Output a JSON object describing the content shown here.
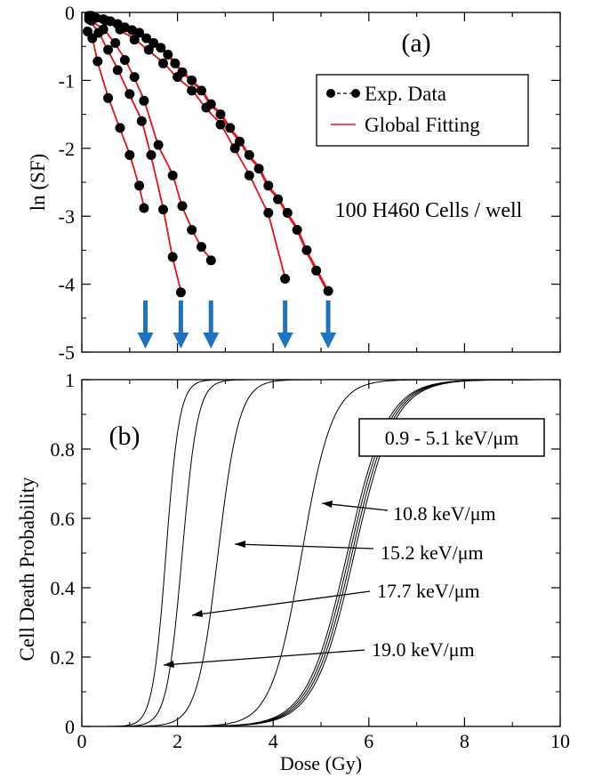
{
  "chart_data": [
    {
      "type": "scatter",
      "panel_label": "(a)",
      "annotation": "100 H460 Cells / well",
      "ylabel": "ln (SF)",
      "xlim": [
        0,
        10
      ],
      "ylim": [
        -5,
        0
      ],
      "y_ticks": [
        "0",
        "-1",
        "-2",
        "-3",
        "-4",
        "-5"
      ],
      "legend": {
        "placement": "top-right",
        "entries": [
          "Exp. Data",
          "Global Fitting"
        ]
      },
      "colors": {
        "data": "#000000",
        "fit": "#e8141c",
        "arrow": "#1f72c0"
      },
      "arrow_doses": [
        1.33,
        2.07,
        2.7,
        4.25,
        5.15
      ],
      "series": [
        {
          "x": [
            0.12,
            0.22,
            0.33,
            0.55,
            0.8,
            1.0,
            1.2,
            1.3
          ],
          "y": [
            -0.28,
            -0.38,
            -0.72,
            -1.26,
            -1.7,
            -2.1,
            -2.55,
            -2.88
          ]
        },
        {
          "x": [
            0.15,
            0.35,
            0.55,
            0.75,
            1.0,
            1.25,
            1.45,
            1.7,
            1.9,
            2.07
          ],
          "y": [
            -0.1,
            -0.3,
            -0.55,
            -0.85,
            -1.2,
            -1.6,
            -2.1,
            -2.9,
            -3.6,
            -4.12
          ]
        },
        {
          "x": [
            0.2,
            0.45,
            0.7,
            0.9,
            1.1,
            1.3,
            1.6,
            1.9,
            2.1,
            2.3,
            2.5,
            2.7
          ],
          "y": [
            -0.12,
            -0.25,
            -0.45,
            -0.7,
            -0.95,
            -1.3,
            -1.95,
            -2.4,
            -2.85,
            -3.2,
            -3.45,
            -3.65
          ]
        },
        {
          "x": [
            0.2,
            0.5,
            0.8,
            1.1,
            1.4,
            1.7,
            2.0,
            2.3,
            2.6,
            2.9,
            3.2,
            3.5,
            3.9,
            4.25
          ],
          "y": [
            -0.05,
            -0.12,
            -0.25,
            -0.4,
            -0.55,
            -0.75,
            -0.95,
            -1.15,
            -1.4,
            -1.65,
            -2.0,
            -2.4,
            -2.95,
            -3.92
          ]
        },
        {
          "x": [
            0.15,
            0.3,
            0.45,
            0.6,
            0.75,
            0.9,
            1.05,
            1.2,
            1.35,
            1.5,
            1.65,
            1.8,
            1.95,
            2.1,
            2.3,
            2.5,
            2.7,
            2.9,
            3.1,
            3.3,
            3.5,
            3.7,
            3.9,
            4.1,
            4.3,
            4.5,
            4.7,
            4.9,
            5.15
          ],
          "y": [
            -0.05,
            -0.08,
            -0.1,
            -0.13,
            -0.17,
            -0.22,
            -0.26,
            -0.3,
            -0.38,
            -0.45,
            -0.52,
            -0.62,
            -0.75,
            -0.88,
            -1.0,
            -1.15,
            -1.35,
            -1.5,
            -1.7,
            -1.9,
            -2.1,
            -2.3,
            -2.55,
            -2.75,
            -2.95,
            -3.2,
            -3.5,
            -3.8,
            -4.1
          ]
        }
      ]
    },
    {
      "type": "line",
      "panel_label": "(b)",
      "xlabel": "Dose (Gy)",
      "ylabel": "Cell Death Probability",
      "xlim": [
        0,
        10
      ],
      "ylim": [
        0,
        1
      ],
      "x_ticks": [
        "0",
        "2",
        "4",
        "6",
        "8",
        "10"
      ],
      "y_ticks": [
        "0",
        "0.2",
        "0.4",
        "0.6",
        "0.8",
        "1"
      ],
      "boxed_label": "0.9 - 5.1 keV/μm",
      "labels": [
        "10.8 keV/μm",
        "15.2 keV/μm",
        "17.7 keV/μm",
        "19.0 keV/μm"
      ],
      "curves": [
        {
          "center": 1.76,
          "width": 0.14
        },
        {
          "center": 2.1,
          "width": 0.16
        },
        {
          "center": 2.85,
          "width": 0.22
        },
        {
          "center": 4.6,
          "width": 0.32
        },
        {
          "center": 5.55,
          "width": 0.42
        },
        {
          "center": 5.6,
          "width": 0.42
        },
        {
          "center": 5.65,
          "width": 0.42
        },
        {
          "center": 5.7,
          "width": 0.42
        }
      ]
    }
  ]
}
